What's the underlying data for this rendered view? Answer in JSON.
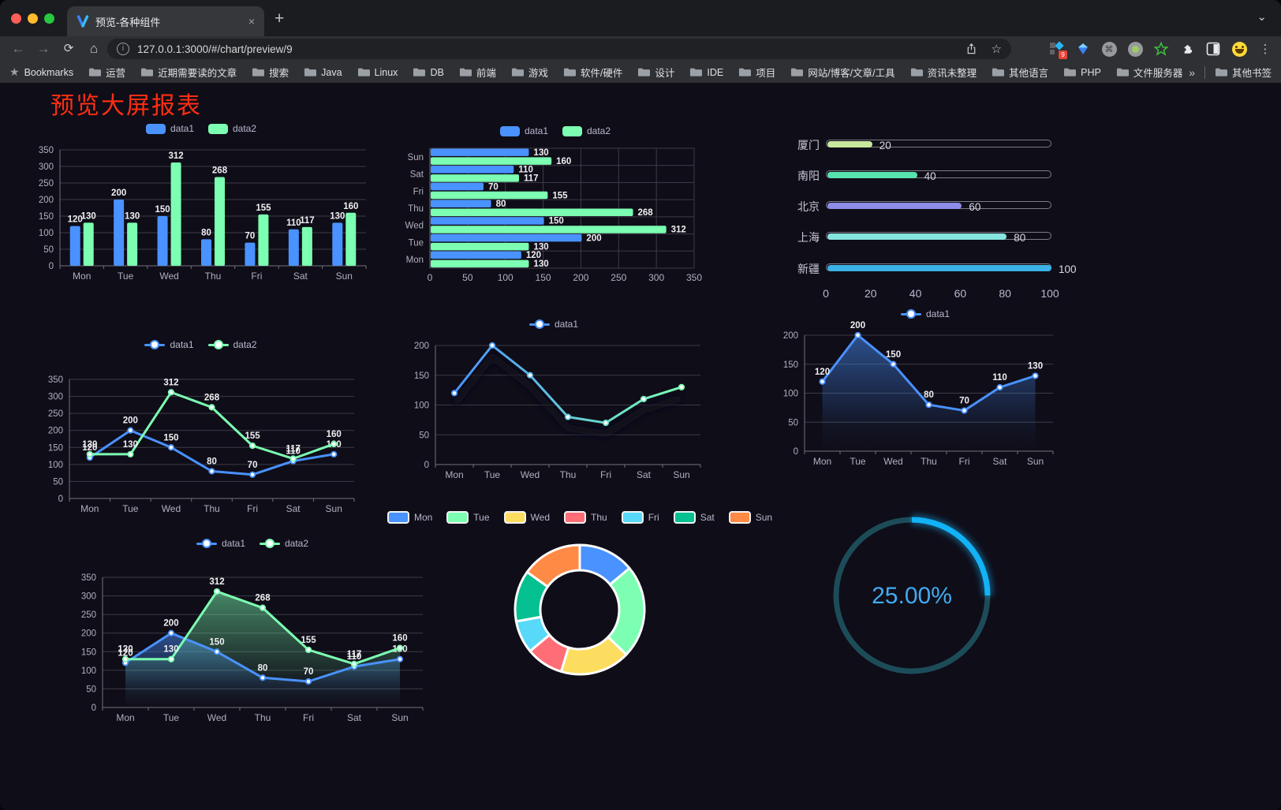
{
  "browser": {
    "tab_title": "预览-各种组件",
    "new_tab": "+",
    "tab_close": "×",
    "chevron": "⌄",
    "url": "127.0.0.1:3000/#/chart/preview/9",
    "extension_badge": "9",
    "bookmarks_bar": {
      "bookmarks_label": "Bookmarks",
      "folders": [
        "运营",
        "近期需要读的文章",
        "搜索",
        "Java",
        "Linux",
        "DB",
        "前端",
        "游戏",
        "软件/硬件",
        "设计",
        "IDE",
        "项目",
        "网站/博客/文章/工具",
        "资讯未整理",
        "其他语言",
        "PHP",
        "文件服务器"
      ],
      "overflow": "»",
      "other_bookmarks": "其他书签"
    }
  },
  "page": {
    "title": "预览大屏报表",
    "title_color": "#ff2e12"
  },
  "chart_data": [
    {
      "id": "vertical-bar",
      "type": "bar",
      "categories": [
        "Mon",
        "Tue",
        "Wed",
        "Thu",
        "Fri",
        "Sat",
        "Sun"
      ],
      "series": [
        {
          "name": "data1",
          "color": "#4992ff",
          "values": [
            120,
            200,
            150,
            80,
            70,
            110,
            130
          ]
        },
        {
          "name": "data2",
          "color": "#7cffb2",
          "values": [
            130,
            130,
            312,
            268,
            155,
            117,
            160
          ]
        }
      ],
      "ylim": [
        0,
        350
      ],
      "ystep": 50,
      "legend_style": "rect"
    },
    {
      "id": "horizontal-bar",
      "type": "bar-horizontal",
      "categories": [
        "Mon",
        "Tue",
        "Wed",
        "Thu",
        "Fri",
        "Sat",
        "Sun"
      ],
      "series": [
        {
          "name": "data1",
          "color": "#4992ff",
          "values": [
            120,
            200,
            150,
            80,
            70,
            110,
            130
          ]
        },
        {
          "name": "data2",
          "color": "#7cffb2",
          "values": [
            130,
            130,
            312,
            268,
            155,
            117,
            160
          ]
        }
      ],
      "xlim": [
        0,
        350
      ],
      "xstep": 50,
      "legend_style": "rect"
    },
    {
      "id": "city-progress",
      "type": "progress-bars",
      "rows": [
        {
          "label": "厦门",
          "value": 20,
          "color": "#c8e79d"
        },
        {
          "label": "南阳",
          "value": 40,
          "color": "#55e2ae"
        },
        {
          "label": "北京",
          "value": 60,
          "color": "#8f8ce8"
        },
        {
          "label": "上海",
          "value": 80,
          "color": "#85e5df"
        },
        {
          "label": "新疆",
          "value": 100,
          "color": "#3ab2e5"
        }
      ],
      "max": 100,
      "xticks": [
        0,
        20,
        40,
        60,
        80,
        100
      ]
    },
    {
      "id": "line-basic",
      "type": "line",
      "categories": [
        "Mon",
        "Tue",
        "Wed",
        "Thu",
        "Fri",
        "Sat",
        "Sun"
      ],
      "series": [
        {
          "name": "data1",
          "color": "#4992ff",
          "values": [
            120,
            200,
            150,
            80,
            70,
            110,
            130
          ]
        },
        {
          "name": "data2",
          "color": "#7cffb2",
          "values": [
            130,
            130,
            312,
            268,
            155,
            117,
            160
          ]
        }
      ],
      "ylim": [
        0,
        350
      ],
      "ystep": 50,
      "labels": true,
      "legend_style": "line"
    },
    {
      "id": "line-gradient",
      "type": "line",
      "categories": [
        "Mon",
        "Tue",
        "Wed",
        "Thu",
        "Fri",
        "Sat",
        "Sun"
      ],
      "series": [
        {
          "name": "data1",
          "color": "#4992ff",
          "color2": "#7cffb2",
          "values": [
            120,
            200,
            150,
            80,
            70,
            110,
            130
          ]
        }
      ],
      "ylim": [
        0,
        200
      ],
      "ystep": 50,
      "labels": false,
      "shadow": true,
      "legend_style": "line"
    },
    {
      "id": "line-area",
      "type": "line",
      "categories": [
        "Mon",
        "Tue",
        "Wed",
        "Thu",
        "Fri",
        "Sat",
        "Sun"
      ],
      "series": [
        {
          "name": "data1",
          "color": "#4992ff",
          "area": true,
          "values": [
            120,
            200,
            150,
            80,
            70,
            110,
            130
          ]
        }
      ],
      "ylim": [
        0,
        200
      ],
      "ystep": 50,
      "labels": true,
      "legend_style": "line"
    },
    {
      "id": "line-area-double",
      "type": "line",
      "categories": [
        "Mon",
        "Tue",
        "Wed",
        "Thu",
        "Fri",
        "Sat",
        "Sun"
      ],
      "series": [
        {
          "name": "data1",
          "color": "#4992ff",
          "area": true,
          "values": [
            120,
            200,
            150,
            80,
            70,
            110,
            130
          ]
        },
        {
          "name": "data2",
          "color": "#7cffb2",
          "area": true,
          "values": [
            130,
            130,
            312,
            268,
            155,
            117,
            160
          ]
        }
      ],
      "ylim": [
        0,
        350
      ],
      "ystep": 50,
      "labels": true,
      "legend_style": "line"
    },
    {
      "id": "week-donut",
      "type": "pie",
      "items": [
        {
          "label": "Mon",
          "value": 120,
          "color": "#4992ff"
        },
        {
          "label": "Tue",
          "value": 200,
          "color": "#7cffb2"
        },
        {
          "label": "Wed",
          "value": 150,
          "color": "#fddd60"
        },
        {
          "label": "Thu",
          "value": 80,
          "color": "#ff6e76"
        },
        {
          "label": "Fri",
          "value": 70,
          "color": "#58d9f9"
        },
        {
          "label": "Sat",
          "value": 110,
          "color": "#05c091"
        },
        {
          "label": "Sun",
          "value": 130,
          "color": "#ff8a45"
        }
      ],
      "legend_style": "pie"
    },
    {
      "id": "percent-gauge",
      "type": "progress-circle",
      "text": "25.00%",
      "percent": 25,
      "color": "#12b3f6",
      "track_color": "#1d4c59",
      "text_color": "#41aaf0"
    }
  ]
}
